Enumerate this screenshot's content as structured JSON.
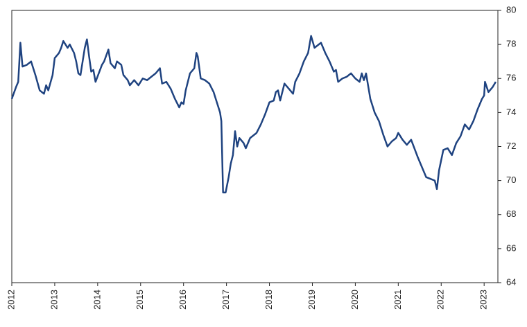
{
  "chart_data": {
    "type": "line",
    "x": [
      2012.0,
      2012.1,
      2012.15,
      2012.2,
      2012.25,
      2012.35,
      2012.45,
      2012.55,
      2012.65,
      2012.75,
      2012.8,
      2012.85,
      2012.95,
      2013.0,
      2013.1,
      2013.15,
      2013.2,
      2013.3,
      2013.35,
      2013.45,
      2013.5,
      2013.55,
      2013.6,
      2013.7,
      2013.75,
      2013.8,
      2013.85,
      2013.9,
      2013.95,
      2014.1,
      2014.15,
      2014.25,
      2014.3,
      2014.4,
      2014.45,
      2014.55,
      2014.6,
      2014.7,
      2014.75,
      2014.85,
      2014.95,
      2015.05,
      2015.15,
      2015.25,
      2015.35,
      2015.45,
      2015.5,
      2015.6,
      2015.7,
      2015.8,
      2015.9,
      2015.95,
      2016.0,
      2016.05,
      2016.15,
      2016.25,
      2016.3,
      2016.33,
      2016.4,
      2016.5,
      2016.6,
      2016.7,
      2016.75,
      2016.8,
      2016.85,
      2016.88,
      2016.92,
      2016.98,
      2017.05,
      2017.1,
      2017.15,
      2017.2,
      2017.25,
      2017.3,
      2017.4,
      2017.45,
      2017.55,
      2017.7,
      2017.8,
      2017.9,
      2018.0,
      2018.1,
      2018.15,
      2018.2,
      2018.25,
      2018.35,
      2018.45,
      2018.55,
      2018.6,
      2018.7,
      2018.8,
      2018.9,
      2018.97,
      2019.05,
      2019.15,
      2019.2,
      2019.3,
      2019.4,
      2019.5,
      2019.55,
      2019.6,
      2019.7,
      2019.8,
      2019.9,
      2020.0,
      2020.1,
      2020.15,
      2020.2,
      2020.25,
      2020.35,
      2020.45,
      2020.55,
      2020.65,
      2020.75,
      2020.85,
      2020.95,
      2021.0,
      2021.1,
      2021.2,
      2021.3,
      2021.45,
      2021.55,
      2021.65,
      2021.75,
      2021.85,
      2021.9,
      2021.95,
      2022.05,
      2022.15,
      2022.25,
      2022.35,
      2022.45,
      2022.55,
      2022.65,
      2022.75,
      2022.85,
      2022.95,
      2023.0,
      2023.02,
      2023.1,
      2023.2,
      2023.27
    ],
    "series": [
      {
        "color": "#1f4380",
        "values": [
          74.8,
          75.5,
          75.8,
          78.1,
          76.7,
          76.8,
          77.0,
          76.2,
          75.3,
          75.1,
          75.6,
          75.3,
          76.2,
          77.2,
          77.5,
          77.8,
          78.2,
          77.8,
          78.0,
          77.5,
          77.0,
          76.3,
          76.2,
          77.8,
          78.3,
          77.3,
          76.4,
          76.5,
          75.8,
          76.8,
          77.0,
          77.7,
          76.9,
          76.6,
          77.0,
          76.8,
          76.2,
          75.9,
          75.6,
          75.9,
          75.6,
          76.0,
          75.9,
          76.1,
          76.3,
          76.6,
          75.7,
          75.8,
          75.4,
          74.8,
          74.3,
          74.6,
          74.5,
          75.3,
          76.3,
          76.6,
          77.5,
          77.3,
          76.0,
          75.9,
          75.7,
          75.2,
          74.8,
          74.4,
          74.0,
          73.5,
          69.3,
          69.3,
          70.2,
          71.0,
          71.5,
          72.9,
          72.0,
          72.5,
          72.2,
          71.9,
          72.5,
          72.8,
          73.3,
          73.9,
          74.6,
          74.7,
          75.2,
          75.3,
          74.7,
          75.7,
          75.4,
          75.1,
          75.8,
          76.3,
          77.0,
          77.5,
          78.5,
          77.8,
          78.0,
          78.1,
          77.5,
          77.0,
          76.4,
          76.5,
          75.8,
          76.0,
          76.1,
          76.3,
          76.0,
          75.8,
          76.3,
          75.9,
          76.3,
          74.8,
          74.0,
          73.5,
          72.7,
          72.0,
          72.3,
          72.5,
          72.8,
          72.4,
          72.1,
          72.4,
          71.4,
          70.8,
          70.2,
          70.1,
          70.0,
          69.5,
          70.6,
          71.8,
          71.9,
          71.5,
          72.2,
          72.6,
          73.3,
          73.0,
          73.5,
          74.2,
          74.8,
          75.0,
          75.8,
          75.2,
          75.5,
          75.8
        ]
      }
    ],
    "xlim": [
      2012,
      2023.32
    ],
    "xticks": [
      2012,
      2013,
      2014,
      2015,
      2016,
      2017,
      2018,
      2019,
      2020,
      2021,
      2022,
      2023
    ],
    "ylim": [
      64,
      80
    ],
    "yticks": [
      64,
      66,
      68,
      70,
      72,
      74,
      76,
      78,
      80
    ]
  }
}
